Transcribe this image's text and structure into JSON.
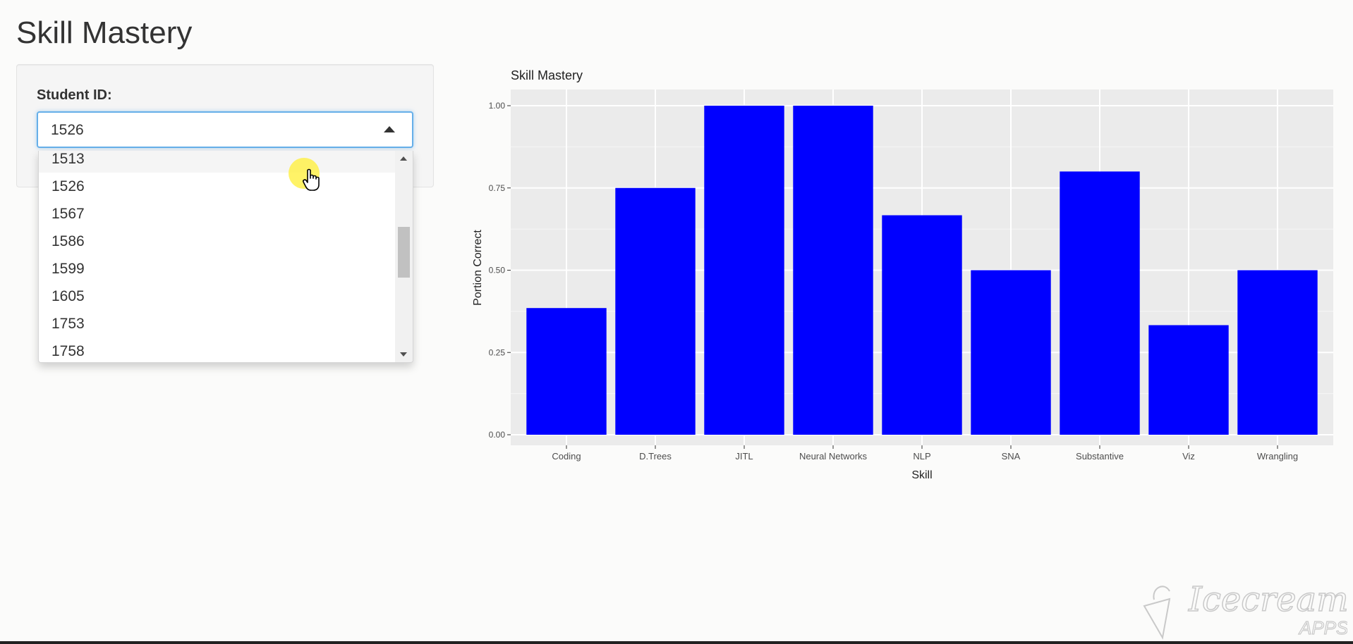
{
  "page": {
    "title": "Skill Mastery"
  },
  "sidebar": {
    "field_label": "Student ID:",
    "select": {
      "selected_value": "1526",
      "options": [
        "1513",
        "1526",
        "1567",
        "1586",
        "1599",
        "1605",
        "1753",
        "1758"
      ],
      "highlighted_option": "1513"
    }
  },
  "chart_data": {
    "type": "bar",
    "title": "Skill Mastery",
    "xlabel": "Skill",
    "ylabel": "Portion Correct",
    "categories": [
      "Coding",
      "D.Trees",
      "JITL",
      "Neural Networks",
      "NLP",
      "SNA",
      "Substantive",
      "Viz",
      "Wrangling"
    ],
    "values": [
      0.385,
      0.75,
      1.0,
      1.0,
      0.667,
      0.5,
      0.8,
      0.333,
      0.5
    ],
    "ylim": [
      0,
      1.0
    ],
    "yticks": [
      "0.00",
      "0.25",
      "0.50",
      "0.75",
      "1.00"
    ],
    "bar_color": "#0000ff",
    "panel_color": "#ebebeb",
    "grid": true
  },
  "watermark": {
    "brand": "Icecream",
    "sub": "APPS"
  },
  "colors": {
    "focus_border": "#66afe9",
    "background": "#fbfbfa"
  }
}
